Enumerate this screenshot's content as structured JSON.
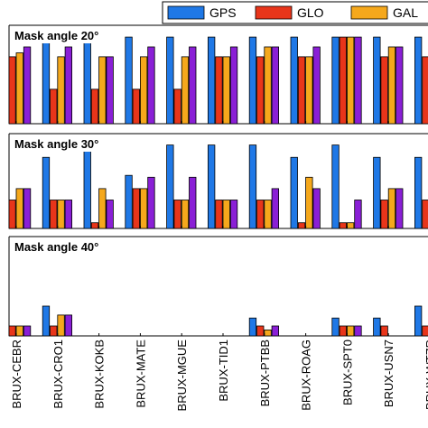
{
  "chart_data": {
    "type": "bar",
    "categories": [
      "BRUX-CEBR",
      "BRUX-CRO1",
      "BRUX-KOKB",
      "BRUX-MATE",
      "BRUX-MGUE",
      "BRUX-TID1",
      "BRUX-PTBB",
      "BRUX-ROAG",
      "BRUX-SPT0",
      "BRUX-USN7",
      "BRUX-WTZR"
    ],
    "legend": {
      "placement": "top-right",
      "entries": [
        "GPS",
        "GLO",
        "GAL"
      ]
    },
    "colors": {
      "GPS": "#1f78e6",
      "GLO": "#e8351a",
      "GAL": "#f5a81c",
      "BDS": "#8a1fd6"
    },
    "ylim": [
      0,
      1
    ],
    "grid": false,
    "panels": [
      {
        "title": "Mask angle 20°",
        "series": [
          {
            "key": "GPS",
            "values": [
              0.88,
              0.88,
              0.88,
              0.88,
              0.88,
              0.88,
              0.88,
              0.88,
              0.88,
              0.88,
              0.88
            ]
          },
          {
            "key": "GLO",
            "values": [
              0.68,
              0.35,
              0.35,
              0.35,
              0.35,
              0.68,
              0.68,
              0.68,
              0.88,
              0.68,
              0.68
            ]
          },
          {
            "key": "GAL",
            "values": [
              0.72,
              0.68,
              0.68,
              0.68,
              0.68,
              0.68,
              0.78,
              0.68,
              0.88,
              0.78,
              0.68
            ]
          },
          {
            "key": "BDS",
            "values": [
              0.78,
              0.78,
              0.68,
              0.78,
              0.78,
              0.78,
              0.78,
              0.78,
              0.88,
              0.78,
              0.88
            ]
          }
        ]
      },
      {
        "title": "Mask angle 30°",
        "series": [
          {
            "key": "GPS",
            "values": [
              0.75,
              0.75,
              0.88,
              0.56,
              0.88,
              0.88,
              0.88,
              0.75,
              0.88,
              0.75,
              0.75
            ]
          },
          {
            "key": "GLO",
            "values": [
              0.3,
              0.3,
              0.06,
              0.42,
              0.3,
              0.3,
              0.3,
              0.06,
              0.06,
              0.3,
              0.3
            ]
          },
          {
            "key": "GAL",
            "values": [
              0.42,
              0.3,
              0.42,
              0.42,
              0.3,
              0.3,
              0.3,
              0.54,
              0.06,
              0.42,
              0.42
            ]
          },
          {
            "key": "BDS",
            "values": [
              0.42,
              0.3,
              0.3,
              0.54,
              0.54,
              0.3,
              0.42,
              0.42,
              0.3,
              0.42,
              0.42
            ]
          }
        ]
      },
      {
        "title": "Mask angle 40°",
        "series": [
          {
            "key": "GPS",
            "values": [
              0.3,
              0.3,
              0.0,
              0.0,
              0.0,
              0.0,
              0.18,
              0.0,
              0.18,
              0.18,
              0.3
            ]
          },
          {
            "key": "GLO",
            "values": [
              0.1,
              0.1,
              0.0,
              0.0,
              0.0,
              0.0,
              0.1,
              0.0,
              0.1,
              0.1,
              0.1
            ]
          },
          {
            "key": "GAL",
            "values": [
              0.1,
              0.21,
              0.0,
              0.0,
              0.0,
              0.0,
              0.06,
              0.0,
              0.1,
              0.0,
              0.0
            ]
          },
          {
            "key": "BDS",
            "values": [
              0.1,
              0.21,
              0.0,
              0.0,
              0.0,
              0.0,
              0.1,
              0.0,
              0.1,
              0.0,
              0.0
            ]
          }
        ]
      }
    ]
  }
}
